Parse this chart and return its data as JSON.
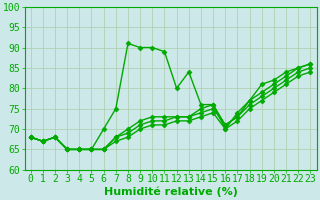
{
  "title": "",
  "xlabel": "Humidité relative (%)",
  "ylabel": "",
  "xlim": [
    -0.5,
    23.5
  ],
  "ylim": [
    60,
    100
  ],
  "yticks": [
    60,
    65,
    70,
    75,
    80,
    85,
    90,
    95,
    100
  ],
  "xticks": [
    0,
    1,
    2,
    3,
    4,
    5,
    6,
    7,
    8,
    9,
    10,
    11,
    12,
    13,
    14,
    15,
    16,
    17,
    18,
    19,
    20,
    21,
    22,
    23
  ],
  "background_color": "#cce8e8",
  "grid_color": "#aaccaa",
  "line_color": "#00aa00",
  "series1": [
    68,
    67,
    68,
    65,
    65,
    65,
    70,
    75,
    91,
    90,
    90,
    89,
    80,
    84,
    76,
    76,
    70,
    74,
    77,
    81,
    82,
    84,
    85,
    86
  ],
  "series2": [
    68,
    67,
    68,
    65,
    65,
    65,
    65,
    68,
    70,
    72,
    73,
    73,
    73,
    73,
    75,
    76,
    71,
    73,
    77,
    79,
    81,
    83,
    85,
    86
  ],
  "series3": [
    68,
    67,
    68,
    65,
    65,
    65,
    65,
    68,
    69,
    71,
    72,
    72,
    73,
    73,
    74,
    75,
    71,
    73,
    76,
    78,
    80,
    82,
    84,
    85
  ],
  "series4": [
    68,
    67,
    68,
    65,
    65,
    65,
    65,
    67,
    68,
    70,
    71,
    71,
    72,
    72,
    73,
    74,
    70,
    72,
    75,
    77,
    79,
    81,
    83,
    84
  ],
  "font_color": "#00aa00",
  "font_size": 7,
  "xlabel_fontsize": 8,
  "marker": "D",
  "markersize": 2.5,
  "linewidth": 1.0
}
